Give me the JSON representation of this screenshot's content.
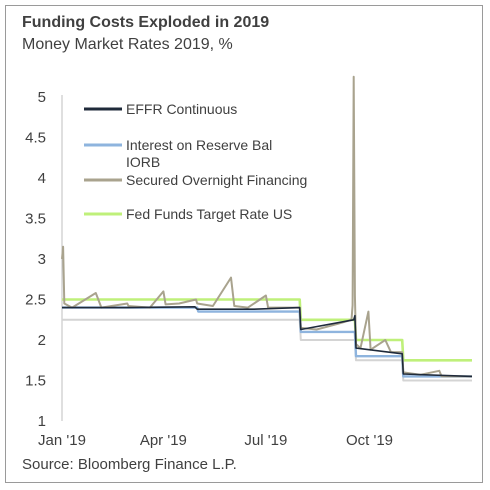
{
  "chart_data": {
    "type": "line",
    "title": "Funding Costs Exploded in 2019",
    "subtitle": "Money Market Rates 2019, %",
    "source": "Source: Bloomberg Finance L.P.",
    "xlabel": "",
    "ylabel": "",
    "ylim": [
      1,
      5
    ],
    "yticks": [
      1,
      1.5,
      2,
      2.5,
      3,
      3.5,
      4,
      4.5,
      5
    ],
    "ytick_labels": [
      "1",
      "1.5",
      "2",
      "2.5",
      "3",
      "3.5",
      "4",
      "4.5",
      "5"
    ],
    "x_range": [
      "2019-01-01",
      "2019-12-31"
    ],
    "xticks": [
      {
        "date": "2019-01-01",
        "label": "Jan '19"
      },
      {
        "date": "2019-04-01",
        "label": "Apr '19"
      },
      {
        "date": "2019-07-01",
        "label": "Jul '19"
      },
      {
        "date": "2019-10-01",
        "label": "Oct '19"
      }
    ],
    "grid": false,
    "legend_position": "top-left",
    "series": [
      {
        "name": "EFFR Continuous",
        "color": "#1f2a3a",
        "points": [
          [
            "2019-01-01",
            2.4
          ],
          [
            "2019-03-01",
            2.4
          ],
          [
            "2019-04-29",
            2.41
          ],
          [
            "2019-05-01",
            2.38
          ],
          [
            "2019-06-20",
            2.38
          ],
          [
            "2019-07-31",
            2.4
          ],
          [
            "2019-08-01",
            2.13
          ],
          [
            "2019-09-17",
            2.25
          ],
          [
            "2019-09-18",
            2.3
          ],
          [
            "2019-09-19",
            1.9
          ],
          [
            "2019-10-30",
            1.83
          ],
          [
            "2019-10-31",
            1.58
          ],
          [
            "2019-12-31",
            1.55
          ]
        ]
      },
      {
        "name": "Interest on Reserve Bal IORB",
        "color": "#8eb4de",
        "points": [
          [
            "2019-01-01",
            2.4
          ],
          [
            "2019-05-01",
            2.4
          ],
          [
            "2019-05-02",
            2.35
          ],
          [
            "2019-07-31",
            2.35
          ],
          [
            "2019-08-01",
            2.1
          ],
          [
            "2019-09-18",
            2.1
          ],
          [
            "2019-09-19",
            1.8
          ],
          [
            "2019-10-30",
            1.8
          ],
          [
            "2019-10-31",
            1.55
          ],
          [
            "2019-12-31",
            1.55
          ]
        ]
      },
      {
        "name": "Secured Overnight Financing",
        "color": "#a9a38e",
        "points": [
          [
            "2019-01-01",
            3.0
          ],
          [
            "2019-01-02",
            3.15
          ],
          [
            "2019-01-03",
            2.45
          ],
          [
            "2019-01-10",
            2.4
          ],
          [
            "2019-01-31",
            2.58
          ],
          [
            "2019-02-05",
            2.4
          ],
          [
            "2019-02-28",
            2.45
          ],
          [
            "2019-03-01",
            2.42
          ],
          [
            "2019-03-20",
            2.4
          ],
          [
            "2019-04-01",
            2.6
          ],
          [
            "2019-04-03",
            2.44
          ],
          [
            "2019-04-15",
            2.45
          ],
          [
            "2019-04-30",
            2.5
          ],
          [
            "2019-05-01",
            2.45
          ],
          [
            "2019-05-15",
            2.42
          ],
          [
            "2019-05-31",
            2.77
          ],
          [
            "2019-06-03",
            2.42
          ],
          [
            "2019-06-15",
            2.4
          ],
          [
            "2019-07-01",
            2.55
          ],
          [
            "2019-07-03",
            2.4
          ],
          [
            "2019-07-31",
            2.4
          ],
          [
            "2019-08-01",
            2.15
          ],
          [
            "2019-08-15",
            2.13
          ],
          [
            "2019-09-03",
            2.2
          ],
          [
            "2019-09-15",
            2.25
          ],
          [
            "2019-09-16",
            2.43
          ],
          [
            "2019-09-17",
            5.25
          ],
          [
            "2019-09-18",
            2.55
          ],
          [
            "2019-09-19",
            1.95
          ],
          [
            "2019-09-23",
            1.9
          ],
          [
            "2019-09-30",
            2.35
          ],
          [
            "2019-10-02",
            1.88
          ],
          [
            "2019-10-15",
            2.0
          ],
          [
            "2019-10-20",
            1.85
          ],
          [
            "2019-10-30",
            1.85
          ],
          [
            "2019-10-31",
            1.6
          ],
          [
            "2019-11-15",
            1.57
          ],
          [
            "2019-12-02",
            1.62
          ],
          [
            "2019-12-04",
            1.55
          ],
          [
            "2019-12-31",
            1.55
          ]
        ]
      },
      {
        "name": "Fed Funds Target Rate US",
        "color": "#bff07a",
        "points": [
          [
            "2019-01-01",
            2.5
          ],
          [
            "2019-07-31",
            2.5
          ],
          [
            "2019-08-01",
            2.25
          ],
          [
            "2019-09-18",
            2.25
          ],
          [
            "2019-09-19",
            2.0
          ],
          [
            "2019-10-30",
            2.0
          ],
          [
            "2019-10-31",
            1.75
          ],
          [
            "2019-12-31",
            1.75
          ]
        ]
      },
      {
        "name": "",
        "color": "#d4d4d4",
        "points": [
          [
            "2019-01-01",
            2.25
          ],
          [
            "2019-07-31",
            2.25
          ],
          [
            "2019-08-01",
            2.0
          ],
          [
            "2019-09-18",
            2.0
          ],
          [
            "2019-09-19",
            1.75
          ],
          [
            "2019-10-30",
            1.75
          ],
          [
            "2019-10-31",
            1.5
          ],
          [
            "2019-12-31",
            1.5
          ]
        ]
      }
    ],
    "legend": [
      {
        "label": "EFFR Continuous",
        "color": "#1f2a3a"
      },
      {
        "label": "Interest on Reserve Bal IORB",
        "color": "#8eb4de"
      },
      {
        "label": "Secured Overnight Financing",
        "color": "#a9a38e"
      },
      {
        "label": "Fed Funds Target Rate US",
        "color": "#bff07a"
      }
    ]
  }
}
